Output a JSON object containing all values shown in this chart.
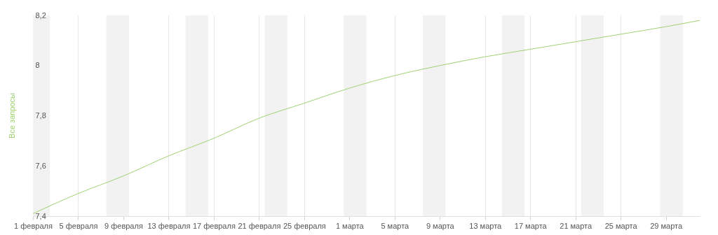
{
  "chart_data": {
    "type": "line",
    "ylabel": "Все запросы",
    "series": [
      {
        "color": "#9fd26f",
        "x": [
          "--02-01",
          "--02-05",
          "--02-09",
          "--02-13",
          "--02-17",
          "--02-21",
          "--02-25",
          "--03-01",
          "--03-05",
          "--03-09",
          "--03-13",
          "--03-17",
          "--03-21",
          "--03-25",
          "--03-29",
          "--04-01"
        ],
        "values": [
          7.41,
          7.49,
          7.56,
          7.64,
          7.71,
          7.79,
          7.85,
          7.91,
          7.96,
          8.0,
          8.035,
          8.065,
          8.095,
          8.125,
          8.155,
          8.18
        ]
      }
    ],
    "xlim": [
      "--02-01",
      "--04-01"
    ],
    "xticks": [
      {
        "value": "--02-01",
        "label": "1 февраля"
      },
      {
        "value": "--02-05",
        "label": "5 февраля"
      },
      {
        "value": "--02-09",
        "label": "9 февраля"
      },
      {
        "value": "--02-13",
        "label": "13 февраля"
      },
      {
        "value": "--02-17",
        "label": "17 февраля"
      },
      {
        "value": "--02-21",
        "label": "21 февраля"
      },
      {
        "value": "--02-25",
        "label": "25 февраля"
      },
      {
        "value": "--03-01",
        "label": "1 марта"
      },
      {
        "value": "--03-05",
        "label": "5 марта"
      },
      {
        "value": "--03-09",
        "label": "9 марта"
      },
      {
        "value": "--03-13",
        "label": "13 марта"
      },
      {
        "value": "--03-17",
        "label": "17 марта"
      },
      {
        "value": "--03-21",
        "label": "21 марта"
      },
      {
        "value": "--03-25",
        "label": "25 марта"
      },
      {
        "value": "--03-29",
        "label": "29 марта"
      }
    ],
    "ylim": [
      7.4,
      8.2
    ],
    "yticks": [
      {
        "value": 7.4,
        "label": "7,4"
      },
      {
        "value": 7.6,
        "label": "7,6"
      },
      {
        "value": 7.8,
        "label": "7,8"
      },
      8,
      {
        "value": 8.2,
        "label": "8,2"
      }
    ],
    "bands": [
      {
        "axis": "x",
        "from": "--02-01",
        "to": "--02-02T12:00",
        "color": "#f2f2f2"
      },
      {
        "axis": "x",
        "from": "--02-07T12:00",
        "to": "--02-09T12:00",
        "color": "#f2f2f2"
      },
      {
        "axis": "x",
        "from": "--02-14T12:00",
        "to": "--02-16T12:00",
        "color": "#f2f2f2"
      },
      {
        "axis": "x",
        "from": "--02-21T12:00",
        "to": "--02-23T12:00",
        "color": "#f2f2f2"
      },
      {
        "axis": "x",
        "from": "--02-28T12:00",
        "to": "--03-02T12:00",
        "color": "#f2f2f2"
      },
      {
        "axis": "x",
        "from": "--03-07T12:00",
        "to": "--03-09T12:00",
        "color": "#f2f2f2"
      },
      {
        "axis": "x",
        "from": "--03-14T12:00",
        "to": "--03-16T12:00",
        "color": "#f2f2f2"
      },
      {
        "axis": "x",
        "from": "--03-21T12:00",
        "to": "--03-23T12:00",
        "color": "#f2f2f2"
      },
      {
        "axis": "x",
        "from": "--03-28T12:00",
        "to": "--03-30T12:00",
        "color": "#f2f2f2"
      }
    ],
    "grid": "x"
  }
}
